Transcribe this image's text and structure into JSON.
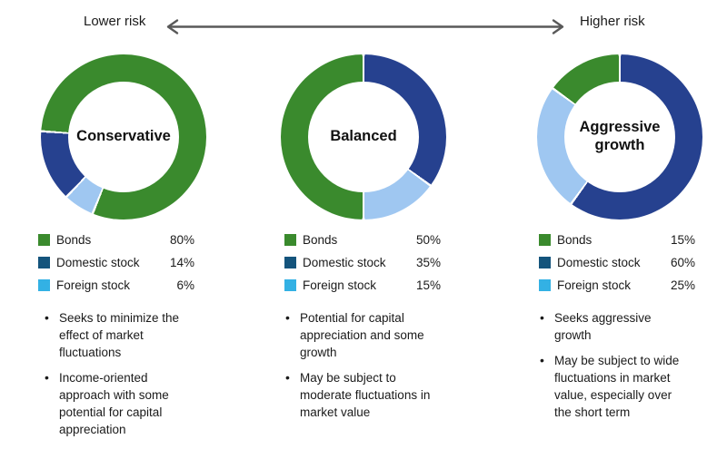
{
  "header": {
    "lower_risk": "Lower risk",
    "higher_risk": "Higher risk",
    "arrow_color": "#595959"
  },
  "chart_data": {
    "type": "pie",
    "donut": true,
    "legend_position": "bottom",
    "slice_colors": [
      "#3A8A2D",
      "#26418F",
      "#9FC7F1"
    ],
    "legend_colors": [
      "#3A8A2D",
      "#14547C",
      "#33B1E4"
    ],
    "charts": [
      {
        "title": "Conservative",
        "categories": [
          "Bonds",
          "Domestic stock",
          "Foreign stock"
        ],
        "values": [
          80,
          14,
          6
        ],
        "labels": [
          "80%",
          "14%",
          "6%"
        ],
        "start_angle": 202,
        "order": [
          2,
          1,
          0
        ],
        "bullets": [
          "Seeks to minimize the effect of market fluctuations",
          "Income-oriented approach with some potential for capital appreciation"
        ]
      },
      {
        "title": "Balanced",
        "categories": [
          "Bonds",
          "Domestic stock",
          "Foreign stock"
        ],
        "values": [
          50,
          35,
          15
        ],
        "labels": [
          "50%",
          "35%",
          "15%"
        ],
        "start_angle": 0,
        "order": [
          1,
          2,
          0
        ],
        "bullets": [
          "Potential for capital appreciation and some growth",
          "May be subject to moderate fluctuations in market value"
        ]
      },
      {
        "title": "Aggressive growth",
        "categories": [
          "Bonds",
          "Domestic stock",
          "Foreign stock"
        ],
        "values": [
          15,
          60,
          25
        ],
        "labels": [
          "15%",
          "60%",
          "25%"
        ],
        "start_angle": 0,
        "order": [
          1,
          2,
          0
        ],
        "bullets": [
          "Seeks aggressive growth",
          "May be subject to wide fluctuations in market value, especially over the short term"
        ]
      }
    ]
  }
}
